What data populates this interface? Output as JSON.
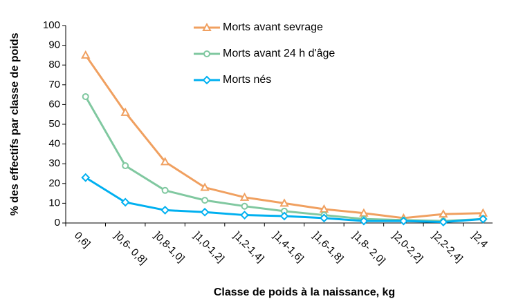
{
  "chart_data": {
    "type": "line",
    "xlabel": "Classe de poids à la naissance, kg",
    "ylabel": "% des effectifs par classe de poids",
    "categories": [
      "0,6]",
      "]0,6- 0,8]",
      "]0,8-1,0]",
      "]1,0-1,2]",
      "]1,2-1,4]",
      "]1,4-1,6]",
      "]1,6-1,8]",
      "]1,8- 2,0]",
      "]2,0-2,2]",
      "]2,2-2,4]",
      "]2,4"
    ],
    "series": [
      {
        "name": "Morts avant sevrage",
        "color": "#f0a060",
        "marker": "triangle",
        "values": [
          85,
          56,
          31,
          18,
          13,
          10,
          7,
          5,
          2.5,
          4.5,
          5
        ]
      },
      {
        "name": "Morts avant 24 h d'âge",
        "color": "#80c8a0",
        "marker": "circle",
        "values": [
          64,
          29,
          16.5,
          11.5,
          8.5,
          6,
          4,
          2,
          1.5,
          1,
          2
        ]
      },
      {
        "name": "Morts nés",
        "color": "#00b0f0",
        "marker": "diamond",
        "values": [
          23,
          10.5,
          6.5,
          5.5,
          4,
          3.5,
          2.5,
          1,
          1,
          0.5,
          2
        ]
      }
    ],
    "ylim": [
      0,
      100
    ],
    "yticks": [
      0,
      10,
      20,
      30,
      40,
      50,
      60,
      70,
      80,
      90,
      100
    ]
  }
}
